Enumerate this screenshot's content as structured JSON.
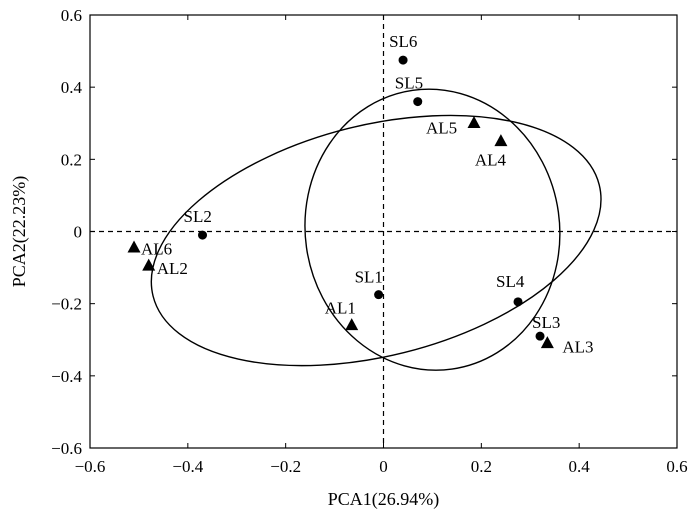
{
  "chart_data": {
    "type": "scatter",
    "title": "",
    "xlabel": "PCA1(26.94%)",
    "ylabel": "PCA2(22.23%)",
    "xlim": [
      -0.6,
      0.6
    ],
    "ylim": [
      -0.6,
      0.6
    ],
    "xticks": [
      -0.6,
      -0.4,
      -0.2,
      0,
      0.2,
      0.4,
      0.6
    ],
    "yticks": [
      -0.6,
      -0.4,
      -0.2,
      0,
      0.2,
      0.4,
      0.6
    ],
    "xtick_labels": [
      "−0.6",
      "−0.4",
      "−0.2",
      "0",
      "0.2",
      "0.4",
      "0.6"
    ],
    "ytick_labels": [
      "−0.6",
      "−0.4",
      "−0.2",
      "0",
      "0.2",
      "0.4",
      "0.6"
    ],
    "grid": false,
    "reference_lines": [
      "x=0 dashed",
      "y=0 dashed"
    ],
    "series": [
      {
        "marker": "circle",
        "points": [
          {
            "label": "SL1",
            "x": -0.01,
            "y": -0.175
          },
          {
            "label": "SL2",
            "x": -0.37,
            "y": -0.01
          },
          {
            "label": "SL3",
            "x": 0.32,
            "y": -0.29
          },
          {
            "label": "SL4",
            "x": 0.275,
            "y": -0.195
          },
          {
            "label": "SL5",
            "x": 0.07,
            "y": 0.36
          },
          {
            "label": "SL6",
            "x": 0.04,
            "y": 0.475
          }
        ]
      },
      {
        "marker": "triangle",
        "points": [
          {
            "label": "AL1",
            "x": -0.065,
            "y": -0.26
          },
          {
            "label": "AL2",
            "x": -0.48,
            "y": -0.095
          },
          {
            "label": "AL3",
            "x": 0.335,
            "y": -0.31
          },
          {
            "label": "AL4",
            "x": 0.24,
            "y": 0.25
          },
          {
            "label": "AL5",
            "x": 0.185,
            "y": 0.3
          },
          {
            "label": "AL6",
            "x": -0.51,
            "y": -0.045
          }
        ]
      }
    ],
    "ellipses": [
      {
        "center": [
          -0.015,
          -0.025
        ],
        "rx": 0.47,
        "ry": 0.32,
        "angle": 14
      },
      {
        "center": [
          0.1,
          0.005
        ],
        "rx": 0.26,
        "ry": 0.39,
        "angle": 8
      }
    ]
  }
}
